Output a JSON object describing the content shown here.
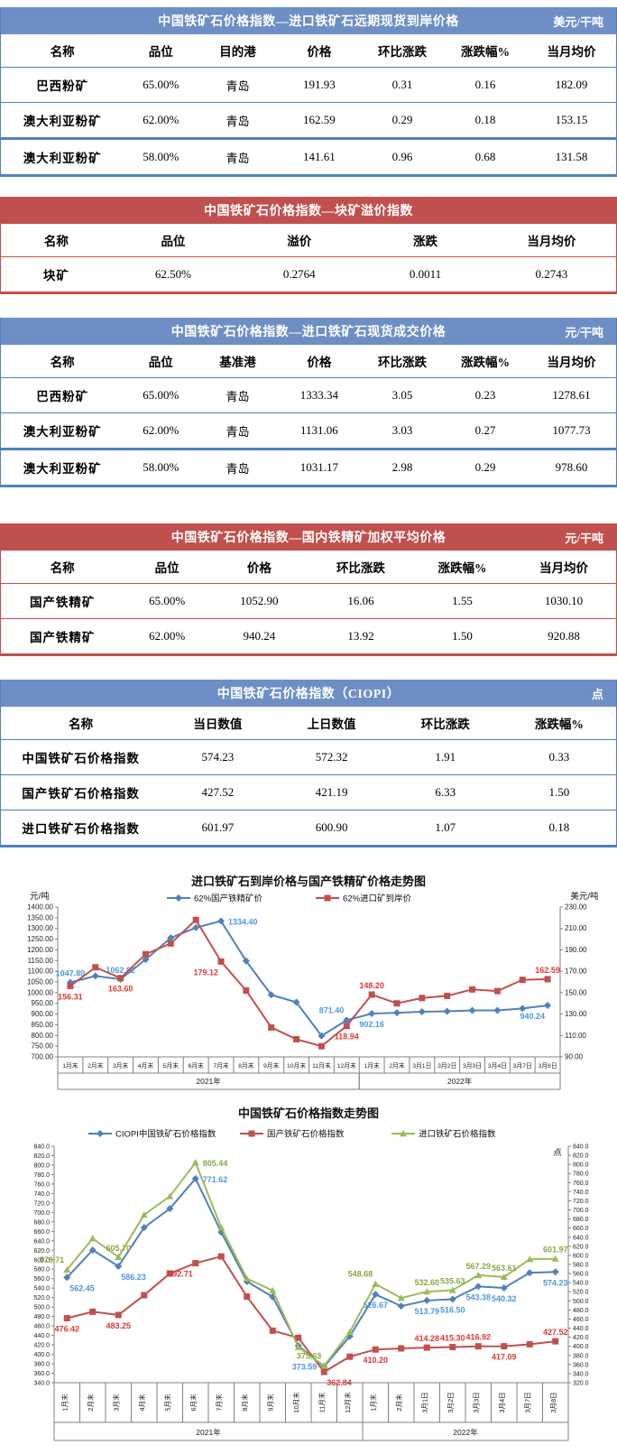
{
  "colors": {
    "blue_band": "#6d8fc6",
    "blue_border": "#4f81bd",
    "red_band": "#c0504d",
    "red_border": "#c0504d",
    "band_text": "#ffffff",
    "series_blue": "#4f81bd",
    "series_red": "#c0504d",
    "series_green": "#9bbb59",
    "label_blue": "#4b97dd",
    "label_red": "#d93a34",
    "label_green": "#87a843",
    "axis_gray": "#808080"
  },
  "tables": [
    {
      "id": "table1",
      "theme": "blue",
      "title": "中国铁矿石价格指数—进口铁矿石远期现货到岸价格",
      "unit": "美元/干吨",
      "columns": [
        "名称",
        "品位",
        "目的港",
        "价格",
        "环比涨跌",
        "涨跌幅%",
        "当月均价"
      ],
      "thick_before_row": 2,
      "rows": [
        [
          "巴西粉矿",
          "65.00%",
          "青岛",
          "191.93",
          "0.31",
          "0.16",
          "182.09"
        ],
        [
          "澳大利亚粉矿",
          "62.00%",
          "青岛",
          "162.59",
          "0.29",
          "0.18",
          "153.15"
        ],
        [
          "澳大利亚粉矿",
          "58.00%",
          "青岛",
          "141.61",
          "0.96",
          "0.68",
          "131.58"
        ]
      ]
    },
    {
      "id": "table2",
      "theme": "red",
      "title": "中国铁矿石价格指数—块矿溢价指数",
      "unit": "",
      "columns": [
        "名称",
        "品位",
        "溢价",
        "涨跌",
        "当月均价"
      ],
      "thick_before_row": -1,
      "rows": [
        [
          "块矿",
          "62.50%",
          "0.2764",
          "0.0011",
          "0.2743"
        ]
      ]
    },
    {
      "id": "table3",
      "theme": "blue",
      "title": "中国铁矿石价格指数—进口铁矿石现货成交价格",
      "unit": "元/干吨",
      "columns": [
        "名称",
        "品位",
        "基准港",
        "价格",
        "环比涨跌",
        "涨跌幅%",
        "当月均价"
      ],
      "thick_before_row": 2,
      "rows": [
        [
          "巴西粉矿",
          "65.00%",
          "青岛",
          "1333.34",
          "3.05",
          "0.23",
          "1278.61"
        ],
        [
          "澳大利亚粉矿",
          "62.00%",
          "青岛",
          "1131.06",
          "3.03",
          "0.27",
          "1077.73"
        ],
        [
          "澳大利亚粉矿",
          "58.00%",
          "青岛",
          "1031.17",
          "2.98",
          "0.29",
          "978.60"
        ]
      ]
    },
    {
      "id": "table4",
      "theme": "red",
      "title": "中国铁矿石价格指数—国内铁精矿加权平均价格",
      "unit": "元/干吨",
      "columns": [
        "名称",
        "品位",
        "价格",
        "环比涨跌",
        "涨跌幅%",
        "当月均价"
      ],
      "thick_before_row": -1,
      "rows": [
        [
          "国产铁精矿",
          "65.00%",
          "1052.90",
          "16.06",
          "1.55",
          "1030.10"
        ],
        [
          "国产铁精矿",
          "62.00%",
          "940.24",
          "13.92",
          "1.50",
          "920.88"
        ]
      ]
    },
    {
      "id": "table5",
      "theme": "blue",
      "title": "中国铁矿石价格指数（CIOPI）",
      "unit": "点",
      "columns": [
        "名称",
        "当日数值",
        "上日数值",
        "环比涨跌",
        "涨跌幅%"
      ],
      "thick_before_row": -1,
      "rows": [
        [
          "中国铁矿石价格指数",
          "574.23",
          "572.32",
          "1.91",
          "0.33"
        ],
        [
          "国产铁矿石价格指数",
          "427.52",
          "421.19",
          "6.33",
          "1.50"
        ],
        [
          "进口铁矿石价格指数",
          "601.97",
          "600.90",
          "1.07",
          "0.18"
        ]
      ]
    }
  ],
  "chart_data": [
    {
      "name": "import-vs-domestic-price-trend-chart",
      "type": "line",
      "title": "进口铁矿石到岸价格与国产铁精矿价格走势图",
      "unit_left": "元/吨",
      "unit_right": "美元/吨",
      "left_axis": {
        "min": 700,
        "max": 1400,
        "step": 50,
        "decimals": 2
      },
      "right_axis": {
        "min": 90,
        "max": 230,
        "step": 20,
        "decimals": 2
      },
      "categories": [
        "1月末",
        "2月末",
        "3月末",
        "4月末",
        "5月末",
        "6月末",
        "7月末",
        "8月末",
        "9月末",
        "10月末",
        "11月末",
        "12月末",
        "1月末",
        "2月末",
        "3月1日",
        "3月2日",
        "3月3日",
        "3月4日",
        "3月7日",
        "3月8日"
      ],
      "year_groups": [
        {
          "label": "2021年",
          "from": 0,
          "to": 11
        },
        {
          "label": "2022年",
          "from": 12,
          "to": 19
        }
      ],
      "series": [
        {
          "name": "62%国产铁精矿价",
          "axis": "left",
          "color": "#4f81bd",
          "label_color": "#4b97dd",
          "marker": "diamond",
          "values": [
            1047.8,
            1078,
            1062.82,
            1155,
            1256,
            1304,
            1334.4,
            1148,
            990,
            955,
            798,
            871.4,
            902.16,
            906,
            911,
            913,
            917,
            917,
            926,
            940.24
          ],
          "labels": [
            {
              "i": 0,
              "t": "1047.80",
              "p": "a"
            },
            {
              "i": 2,
              "t": "1062.82",
              "p": "a"
            },
            {
              "i": 6,
              "t": "1334.40",
              "p": "r"
            },
            {
              "i": 11,
              "t": "871.40",
              "p": "al"
            },
            {
              "i": 12,
              "t": "902.16",
              "p": "b"
            },
            {
              "i": 19,
              "t": "940.24",
              "p": "bl"
            }
          ]
        },
        {
          "name": "62%进口矿到岸价",
          "axis": "right",
          "color": "#c0504d",
          "label_color": "#d93a34",
          "marker": "square",
          "values": [
            156.31,
            173.7,
            163.6,
            186,
            196,
            218,
            179.12,
            152,
            117.5,
            106.5,
            100,
            118.94,
            148.2,
            140,
            145,
            147,
            153,
            151.5,
            162,
            162.59
          ],
          "labels": [
            {
              "i": 0,
              "t": "156.31",
              "p": "b"
            },
            {
              "i": 2,
              "t": "163.60",
              "p": "b"
            },
            {
              "i": 6,
              "t": "179.12",
              "p": "bl"
            },
            {
              "i": 11,
              "t": "118.94",
              "p": "b"
            },
            {
              "i": 12,
              "t": "148.20",
              "p": "a"
            },
            {
              "i": 19,
              "t": "162.59",
              "p": "a"
            }
          ]
        }
      ]
    },
    {
      "name": "ciopi-index-trend-chart",
      "type": "line",
      "title": "中国铁矿石价格指数走势图",
      "unit_left": "",
      "unit_right": "点",
      "left_axis": {
        "min": 340,
        "max": 840,
        "step": 20,
        "decimals": 1
      },
      "right_axis": {
        "min": 320,
        "max": 840,
        "step": 20,
        "decimals": 1
      },
      "categories": [
        "1月末",
        "2月末",
        "3月末",
        "4月末",
        "5月末",
        "6月末",
        "7月末",
        "8月末",
        "9月末",
        "10月末",
        "11月末",
        "12月末",
        "1月末",
        "2月末",
        "3月1日",
        "3月2日",
        "3月3日",
        "3月4日",
        "3月7日",
        "3月8日"
      ],
      "year_groups": [
        {
          "label": "2021年",
          "from": 0,
          "to": 11
        },
        {
          "label": "2022年",
          "from": 12,
          "to": 19
        }
      ],
      "series": [
        {
          "name": "CIOPI中国铁矿石价格指数",
          "axis": "left",
          "color": "#4f81bd",
          "label_color": "#4b97dd",
          "marker": "diamond",
          "values": [
            562.45,
            620.4,
            586.23,
            668,
            708,
            771.62,
            658.3,
            554,
            521.6,
            418.2,
            373.59,
            438,
            526.67,
            502,
            513.79,
            516.5,
            543.38,
            540.32,
            572.32,
            574.23
          ],
          "labels": [
            {
              "i": 0,
              "t": "562.45",
              "p": "br"
            },
            {
              "i": 2,
              "t": "586.23",
              "p": "br"
            },
            {
              "i": 5,
              "t": "771.62",
              "p": "r"
            },
            {
              "i": 10,
              "t": "373.59",
              "p": "l"
            },
            {
              "i": 12,
              "t": "526.67",
              "p": "b"
            },
            {
              "i": 14,
              "t": "513.79",
              "p": "b"
            },
            {
              "i": 15,
              "t": "516.50",
              "p": "b"
            },
            {
              "i": 16,
              "t": "543.38",
              "p": "b"
            },
            {
              "i": 17,
              "t": "540.32",
              "p": "b"
            },
            {
              "i": 19,
              "t": "574.23",
              "p": "b"
            }
          ]
        },
        {
          "name": "国产铁矿石价格指数",
          "axis": "left",
          "color": "#c0504d",
          "label_color": "#d93a34",
          "marker": "square",
          "values": [
            476.42,
            490,
            483.25,
            525,
            571,
            592.71,
            607,
            522,
            450,
            435,
            362.84,
            395,
            410.2,
            412.5,
            414.28,
            415.3,
            416.92,
            417.09,
            421.19,
            427.52
          ],
          "labels": [
            {
              "i": 0,
              "t": "476.42",
              "p": "b"
            },
            {
              "i": 2,
              "t": "483.25",
              "p": "b"
            },
            {
              "i": 5,
              "t": "592.71",
              "p": "bl"
            },
            {
              "i": 10,
              "t": "362.84",
              "p": "br"
            },
            {
              "i": 12,
              "t": "410.20",
              "p": "b"
            },
            {
              "i": 14,
              "t": "414.28",
              "p": "a"
            },
            {
              "i": 15,
              "t": "415.30",
              "p": "a"
            },
            {
              "i": 16,
              "t": "416.92",
              "p": "a"
            },
            {
              "i": 17,
              "t": "417.09",
              "p": "b"
            },
            {
              "i": 19,
              "t": "427.52",
              "p": "a"
            }
          ]
        },
        {
          "name": "进口铁矿石价格指数",
          "axis": "left",
          "color": "#9bbb59",
          "label_color": "#87a843",
          "marker": "triangle",
          "values": [
            578.71,
            645,
            605.7,
            695,
            734,
            805.44,
            668,
            560,
            535,
            415,
            375.63,
            447,
            548.68,
            519,
            532.6,
            535.63,
            567.29,
            563.61,
            600.9,
            601.97
          ],
          "labels": [
            {
              "i": 0,
              "t": "578.71",
              "p": "al"
            },
            {
              "i": 2,
              "t": "605.70",
              "p": "a"
            },
            {
              "i": 5,
              "t": "805.44",
              "p": "r"
            },
            {
              "i": 10,
              "t": "375.63",
              "p": "al"
            },
            {
              "i": 12,
              "t": "548.68",
              "p": "al"
            },
            {
              "i": 14,
              "t": "532.60",
              "p": "a"
            },
            {
              "i": 15,
              "t": "535.63",
              "p": "a"
            },
            {
              "i": 16,
              "t": "567.29",
              "p": "a"
            },
            {
              "i": 17,
              "t": "563.61",
              "p": "a"
            },
            {
              "i": 19,
              "t": "601.97",
              "p": "a"
            }
          ]
        }
      ]
    }
  ]
}
